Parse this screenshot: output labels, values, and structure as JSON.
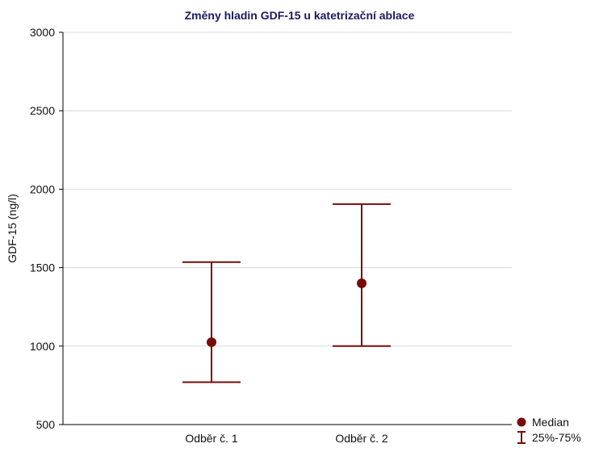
{
  "chart_data": {
    "type": "scatter",
    "title": "Změny hladin GDF-15 u katetrizační ablace",
    "xlabel": "",
    "ylabel": "GDF-15 (ng/l)",
    "categories": [
      "Odběr č. 1",
      "Odběr č. 2"
    ],
    "median": [
      1025,
      1400
    ],
    "q25": [
      770,
      1000
    ],
    "q75": [
      1535,
      1905
    ],
    "ylim": [
      500,
      3000
    ],
    "yticks": [
      500,
      1000,
      1500,
      2000,
      2500,
      3000
    ],
    "grid": true,
    "legend_position": "bottom-right",
    "legend": {
      "median_label": "Median",
      "range_label": "25%-75%"
    },
    "colors": {
      "series": "#7a0a0a",
      "title": "#1a1a5e",
      "grid": "#d8d8d8",
      "axis": "#000000"
    }
  }
}
